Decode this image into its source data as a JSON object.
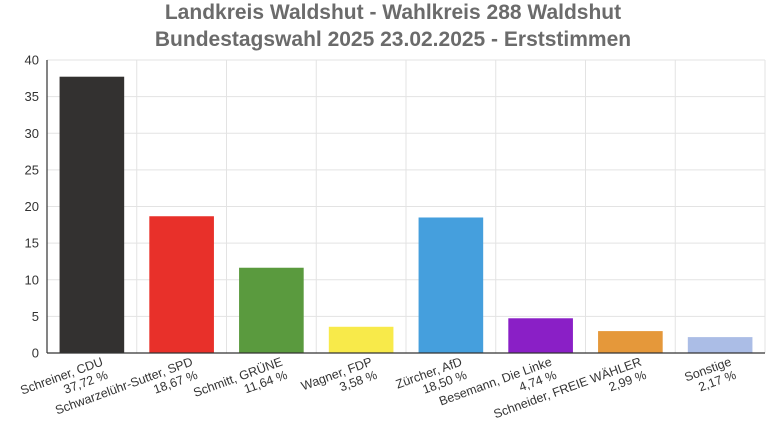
{
  "chart_data": {
    "type": "bar",
    "title": "Landkreis Waldshut - Wahlkreis 288 Waldshut",
    "subtitle": "Bundestagswahl 2025 23.02.2025  - Erststimmen",
    "xlabel": "",
    "ylabel": "",
    "ylim": [
      0,
      40
    ],
    "yticks": [
      0,
      5,
      10,
      15,
      20,
      25,
      30,
      35,
      40
    ],
    "grid": true,
    "legend": "none",
    "categories": [
      "Schreiner, CDU",
      "Schwarzelühr-Sutter, SPD",
      "Schmitt, GRÜNE",
      "Wagner, FDP",
      "Zürcher, AfD",
      "Besemann, Die Linke",
      "Schneider, FREIE WÄHLER",
      "Sonstige"
    ],
    "value_labels": [
      "37,72 %",
      "18,67 %",
      "11,64 %",
      "3,58 %",
      "18,50 %",
      "4,74 %",
      "2,99 %",
      "2,17 %"
    ],
    "values": [
      37.72,
      18.67,
      11.64,
      3.58,
      18.5,
      4.74,
      2.99,
      2.17
    ],
    "colors": [
      "#333130",
      "#e8302a",
      "#5a9a3e",
      "#f8ea4a",
      "#459fdd",
      "#8a1fc6",
      "#e5983a",
      "#abbde6"
    ]
  }
}
